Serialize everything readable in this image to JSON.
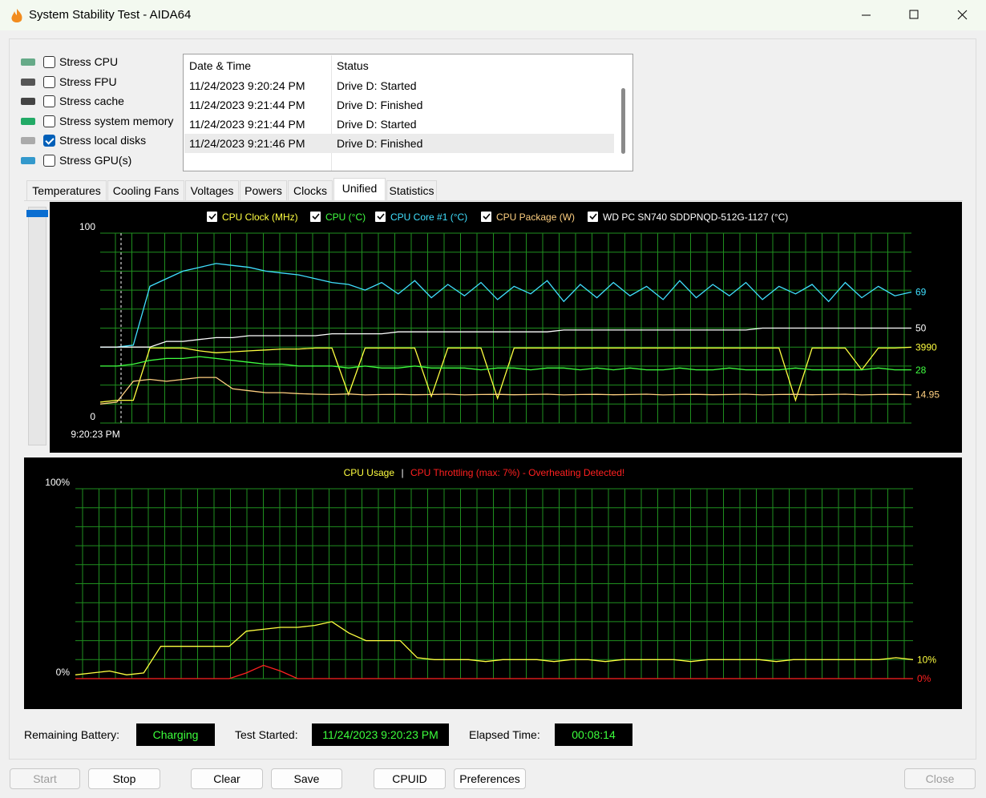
{
  "window": {
    "title": "System Stability Test - AIDA64"
  },
  "stress_options": [
    {
      "label": "Stress CPU",
      "checked": false
    },
    {
      "label": "Stress FPU",
      "checked": false
    },
    {
      "label": "Stress cache",
      "checked": false
    },
    {
      "label": "Stress system memory",
      "checked": false
    },
    {
      "label": "Stress local disks",
      "checked": true
    },
    {
      "label": "Stress GPU(s)",
      "checked": false
    }
  ],
  "log": {
    "columns": [
      "Date & Time",
      "Status"
    ],
    "rows": [
      [
        "11/24/2023 9:20:24 PM",
        "Drive D: Started"
      ],
      [
        "11/24/2023 9:21:44 PM",
        "Drive D: Finished"
      ],
      [
        "11/24/2023 9:21:44 PM",
        "Drive D: Started"
      ],
      [
        "11/24/2023 9:21:46 PM",
        "Drive D: Finished"
      ]
    ]
  },
  "tabs": [
    {
      "label": "Temperatures",
      "selected": false
    },
    {
      "label": "Cooling Fans",
      "selected": false
    },
    {
      "label": "Voltages",
      "selected": false
    },
    {
      "label": "Powers",
      "selected": false
    },
    {
      "label": "Clocks",
      "selected": false
    },
    {
      "label": "Unified",
      "selected": true
    },
    {
      "label": "Statistics",
      "selected": false
    }
  ],
  "chart_data": [
    {
      "type": "line",
      "x_start": "9:20:23 PM",
      "ylim": [
        0,
        100
      ],
      "yticks": [
        0,
        100
      ],
      "grid_yticks": [
        10,
        20,
        30,
        40,
        50,
        60,
        70,
        80,
        90
      ],
      "grid": true,
      "series": [
        {
          "name": "CPU Clock (MHz)",
          "color": "#ffff40",
          "checked": true,
          "ylim": [
            0,
            10000
          ],
          "values": [
            1100,
            1200,
            1200,
            3950,
            3950,
            3950,
            3800,
            3700,
            3750,
            3800,
            3850,
            3900,
            3900,
            3950,
            3950,
            1500,
            3950,
            3950,
            3950,
            3950,
            1400,
            3950,
            3950,
            3950,
            1300,
            3950,
            3950,
            3950,
            3950,
            3950,
            3950,
            3950,
            3950,
            3950,
            3950,
            3950,
            3950,
            3950,
            3950,
            3950,
            3950,
            3950,
            1200,
            3950,
            3950,
            3950,
            2800,
            3950,
            3950,
            3990
          ]
        },
        {
          "name": "CPU (°C)",
          "color": "#40ff40",
          "checked": true,
          "values": [
            30,
            30,
            31,
            33,
            34,
            34,
            35,
            34,
            33,
            32,
            31,
            31,
            30,
            30,
            30,
            29,
            30,
            29,
            29,
            30,
            29,
            29,
            29,
            28,
            29,
            29,
            28,
            29,
            29,
            28,
            29,
            28,
            29,
            28,
            28,
            29,
            28,
            28,
            29,
            28,
            28,
            28,
            29,
            28,
            28,
            28,
            28,
            29,
            28,
            28
          ]
        },
        {
          "name": "CPU Core #1 (°C)",
          "color": "#40e0ff",
          "checked": true,
          "values": [
            40,
            40,
            41,
            72,
            76,
            80,
            82,
            84,
            83,
            82,
            80,
            79,
            78,
            76,
            74,
            73,
            70,
            74,
            68,
            75,
            66,
            73,
            67,
            74,
            65,
            72,
            68,
            75,
            64,
            73,
            66,
            74,
            67,
            72,
            65,
            75,
            66,
            73,
            67,
            74,
            65,
            72,
            68,
            73,
            64,
            74,
            66,
            72,
            67,
            69
          ]
        },
        {
          "name": "CPU Package (W)",
          "color": "#ffd080",
          "checked": true,
          "values": [
            10,
            11,
            22,
            23,
            22,
            23,
            24,
            24,
            18,
            17,
            16,
            16,
            15.5,
            15.2,
            15,
            15.3,
            14.8,
            15,
            15.1,
            14.9,
            15,
            15.2,
            14.8,
            15,
            15.1,
            14.9,
            15,
            15.2,
            14.8,
            15,
            15.1,
            14.9,
            15,
            15.2,
            14.8,
            15,
            15.1,
            14.9,
            15,
            15.2,
            14.8,
            15,
            15.1,
            14.9,
            15,
            15.2,
            14.8,
            15,
            15.1,
            14.95
          ]
        },
        {
          "name": "WD PC SN740 SDDPNQD-512G-1127 (°C)",
          "color": "#ffffff",
          "checked": true,
          "values": [
            40,
            40,
            40,
            40,
            43,
            43,
            44,
            45,
            45,
            46,
            46,
            46,
            46,
            46,
            47,
            47,
            47,
            47,
            48,
            48,
            48,
            48,
            48,
            48,
            48,
            48,
            48,
            48,
            49,
            49,
            49,
            49,
            49,
            49,
            49,
            49,
            49,
            49,
            49,
            49,
            50,
            50,
            50,
            50,
            50,
            50,
            50,
            50,
            50,
            50
          ]
        }
      ]
    },
    {
      "type": "line",
      "ylim": [
        0,
        100
      ],
      "yticks": [
        {
          "value": 0,
          "label": "0%"
        },
        {
          "value": 100,
          "label": "100%"
        }
      ],
      "grid_yticks": [
        10,
        20,
        30,
        40,
        50,
        60,
        70,
        80,
        90
      ],
      "grid": true,
      "legend_separator": "|",
      "series": [
        {
          "name": "CPU Usage",
          "color": "#ffff40",
          "values": [
            2,
            3,
            4,
            2,
            3,
            17,
            17,
            17,
            17,
            17,
            25,
            26,
            27,
            27,
            28,
            30,
            24,
            20,
            20,
            20,
            11,
            10,
            10,
            10,
            9,
            10,
            10,
            10,
            9,
            10,
            10,
            9,
            10,
            10,
            10,
            10,
            9,
            10,
            10,
            10,
            10,
            9,
            10,
            10,
            10,
            10,
            10,
            10,
            11,
            10
          ],
          "value_labels": [
            null,
            null,
            null,
            null,
            null,
            null,
            null,
            null,
            null,
            null,
            null,
            null,
            null,
            null,
            null,
            null,
            null,
            null,
            null,
            null,
            null,
            null,
            null,
            null,
            null,
            null,
            null,
            null,
            null,
            null,
            null,
            null,
            null,
            null,
            null,
            null,
            null,
            null,
            null,
            null,
            null,
            null,
            null,
            null,
            null,
            null,
            null,
            null,
            null,
            "10%"
          ]
        },
        {
          "name": "CPU Throttling (max: 7%) - Overheating Detected!",
          "color": "#ff2020",
          "values": [
            0,
            0,
            0,
            0,
            0,
            0,
            0,
            0,
            0,
            0,
            3,
            7,
            4,
            0,
            0,
            0,
            0,
            0,
            0,
            0,
            0,
            0,
            0,
            0,
            0,
            0,
            0,
            0,
            0,
            0,
            0,
            0,
            0,
            0,
            0,
            0,
            0,
            0,
            0,
            0,
            0,
            0,
            0,
            0,
            0,
            0,
            0,
            0,
            0,
            0
          ],
          "value_labels": [
            null,
            null,
            null,
            null,
            null,
            null,
            null,
            null,
            null,
            null,
            null,
            null,
            null,
            null,
            null,
            null,
            null,
            null,
            null,
            null,
            null,
            null,
            null,
            null,
            null,
            null,
            null,
            null,
            null,
            null,
            null,
            null,
            null,
            null,
            null,
            null,
            null,
            null,
            null,
            null,
            null,
            null,
            null,
            null,
            null,
            null,
            null,
            null,
            null,
            "0%"
          ]
        }
      ]
    }
  ],
  "status": [
    {
      "label": "Remaining Battery:",
      "value": "Charging"
    },
    {
      "label": "Test Started:",
      "value": "11/24/2023 9:20:23 PM"
    },
    {
      "label": "Elapsed Time:",
      "value": "00:08:14"
    }
  ],
  "buttons": [
    {
      "label": "Start",
      "enabled": false
    },
    {
      "label": "Stop",
      "enabled": true
    },
    {
      "label": "Clear",
      "enabled": true
    },
    {
      "label": "Save",
      "enabled": true
    },
    {
      "label": "CPUID",
      "enabled": true
    },
    {
      "label": "Preferences",
      "enabled": true
    },
    {
      "label": "Close",
      "enabled": false
    }
  ]
}
